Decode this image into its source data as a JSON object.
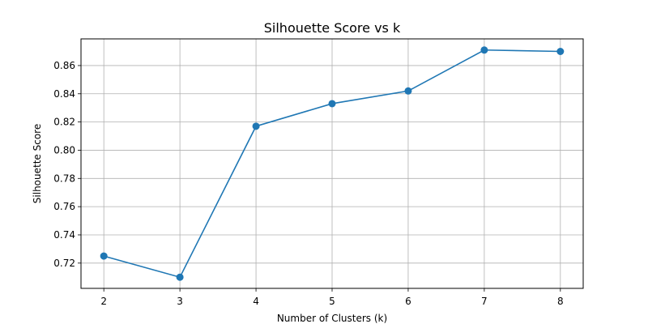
{
  "chart_data": {
    "type": "line",
    "title": "Silhouette Score vs k",
    "xlabel": "Number of Clusters (k)",
    "ylabel": "Silhouette Score",
    "x": [
      2,
      3,
      4,
      5,
      6,
      7,
      8
    ],
    "series": [
      {
        "values": [
          0.725,
          0.71,
          0.817,
          0.833,
          0.842,
          0.871,
          0.87
        ]
      }
    ],
    "xticks": [
      "2",
      "3",
      "4",
      "5",
      "6",
      "7",
      "8"
    ],
    "yticks": [
      "0.72",
      "0.74",
      "0.76",
      "0.78",
      "0.80",
      "0.82",
      "0.84",
      "0.86"
    ],
    "xlim": [
      1.7,
      8.3
    ],
    "ylim": [
      0.7021,
      0.8789
    ],
    "grid": true,
    "marker": "circle",
    "colors": {
      "series": "#1f77b4",
      "grid": "#b0b0b0",
      "axis": "#000000"
    }
  }
}
